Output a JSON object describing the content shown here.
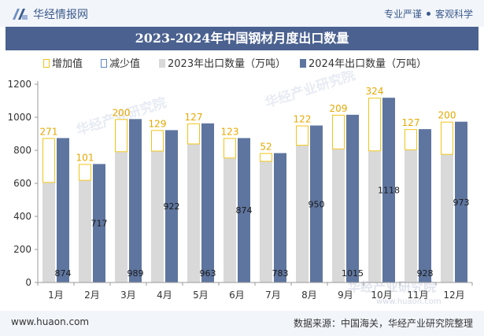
{
  "header": {
    "brand": "华经情报网",
    "tagline_left": "专业严谨",
    "tagline_right": "客观科学"
  },
  "title": "2023-2024年中国钢材月度出口数量",
  "legend": {
    "increase": "增加值",
    "decrease": "减少值",
    "series_2023": "2023年出口数量（万吨）",
    "series_2024": "2024年出口数量（万吨）"
  },
  "watermark": {
    "center": "华经产业研究院",
    "bottom_cn": "华经产业研究院",
    "bottom_url": "www.huaon.com"
  },
  "footer": {
    "site": "www.huaon.com",
    "source": "数据来源：中国海关，华经产业研究院整理"
  },
  "colors": {
    "bar_2023": "#d9d9d9",
    "bar_2024": "#5e759f",
    "increase_outline": "#f0c419",
    "decrease_outline": "#5b86c4",
    "label_increase": "#e8a800",
    "title_bg": "#4b6290"
  },
  "chart_data": {
    "type": "bar",
    "categories": [
      "1月",
      "2月",
      "3月",
      "4月",
      "5月",
      "6月",
      "7月",
      "8月",
      "9月",
      "10月",
      "11月",
      "12月"
    ],
    "series": [
      {
        "name": "2023年出口数量（万吨）",
        "values": [
          603,
          616,
          789,
          793,
          836,
          751,
          731,
          828,
          806,
          794,
          801,
          773
        ]
      },
      {
        "name": "2024年出口数量（万吨）",
        "values": [
          874,
          717,
          989,
          922,
          963,
          874,
          783,
          950,
          1015,
          1118,
          928,
          973
        ]
      },
      {
        "name": "增加值",
        "values": [
          271,
          101,
          200,
          129,
          127,
          123,
          52,
          122,
          209,
          324,
          127,
          200
        ]
      }
    ],
    "ylim": [
      0,
      1200
    ],
    "yticks": [
      0,
      200,
      400,
      600,
      800,
      1000,
      1200
    ],
    "grid": false,
    "legend_position": "top"
  }
}
